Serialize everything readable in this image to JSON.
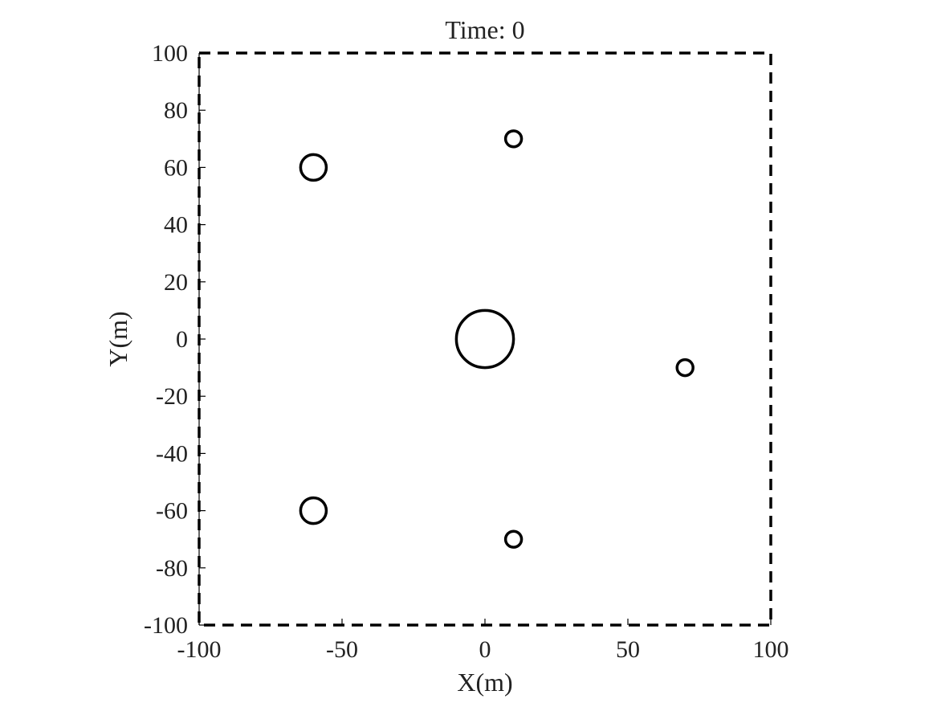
{
  "chart_data": {
    "type": "scatter",
    "title": "Time: 0",
    "xlabel": "X(m)",
    "ylabel": "Y(m)",
    "xlim": [
      -100,
      100
    ],
    "ylim": [
      -100,
      100
    ],
    "xticks": [
      -100,
      -50,
      0,
      50,
      100
    ],
    "yticks": [
      -100,
      -80,
      -60,
      -40,
      -20,
      0,
      20,
      40,
      60,
      80,
      100
    ],
    "grid": false,
    "frame_style": "dashed",
    "series": [
      {
        "marker": "open-circle",
        "color": "#000000",
        "points": [
          {
            "x": 0,
            "y": 0,
            "r": 10
          },
          {
            "x": -60,
            "y": 60,
            "r": 4.5
          },
          {
            "x": -60,
            "y": -60,
            "r": 4.5
          },
          {
            "x": 10,
            "y": 70,
            "r": 2.8
          },
          {
            "x": 10,
            "y": -70,
            "r": 2.8
          },
          {
            "x": 70,
            "y": -10,
            "r": 2.8
          }
        ]
      }
    ]
  }
}
